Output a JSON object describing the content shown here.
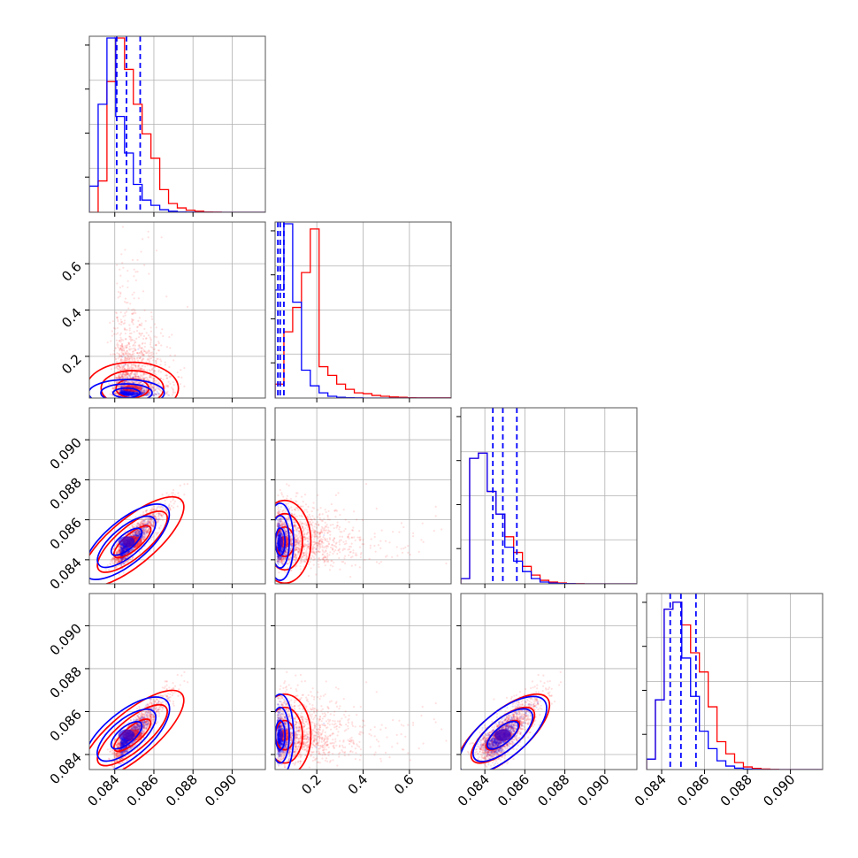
{
  "chart_data": {
    "type": "corner",
    "dims": [
      {
        "range": [
          0.0827,
          0.0917
        ],
        "ticks": [
          0.084,
          0.086,
          0.088,
          0.09
        ],
        "tick_labels": [
          "0.084",
          "0.086",
          "0.088",
          "0.090"
        ]
      },
      {
        "range": [
          0.02,
          0.78
        ],
        "ticks": [
          0.2,
          0.4,
          0.6
        ],
        "tick_labels": [
          "0.2",
          "0.4",
          "0.6"
        ]
      },
      {
        "range": [
          0.0828,
          0.0916
        ],
        "ticks": [
          0.084,
          0.086,
          0.088,
          0.09
        ],
        "tick_labels": [
          "0.084",
          "0.086",
          "0.088",
          "0.090"
        ]
      },
      {
        "range": [
          0.0833,
          0.0915
        ],
        "ticks": [
          0.084,
          0.086,
          0.088,
          0.09
        ],
        "tick_labels": [
          "0.084",
          "0.086",
          "0.088",
          "0.090"
        ]
      }
    ],
    "series": [
      {
        "color": "#ff0000",
        "histograms": [
          [
            0,
            0.18,
            0.75,
            1.0,
            0.82,
            0.62,
            0.45,
            0.31,
            0.13,
            0.05,
            0.025,
            0.012,
            0.006,
            0.002,
            0.001,
            0,
            0,
            0,
            0,
            0
          ],
          [
            0.08,
            0.38,
            0.52,
            0.72,
            0.97,
            0.18,
            0.13,
            0.08,
            0.05,
            0.03,
            0.025,
            0.015,
            0.01,
            0.006,
            0.004,
            0.002,
            0.001,
            0.001,
            0.001,
            0.001
          ],
          [
            0.03,
            0.72,
            0.75,
            0.53,
            0.4,
            0.27,
            0.18,
            0.1,
            0.05,
            0.02,
            0.01,
            0.005,
            0.002,
            0.001,
            0,
            0,
            0,
            0,
            0,
            0
          ],
          [
            0.06,
            0.4,
            0.92,
            0.96,
            0.83,
            0.67,
            0.56,
            0.36,
            0.16,
            0.09,
            0.04,
            0.015,
            0.007,
            0.003,
            0.001,
            0,
            0,
            0,
            0,
            0
          ]
        ],
        "quantiles": [
          [
            0.0842,
            0.0849,
            0.0857
          ],
          [
            0.045,
            0.062,
            0.11
          ],
          [
            0.0843,
            0.0849,
            0.0856
          ],
          [
            0.0844,
            0.0849,
            0.0856
          ]
        ]
      },
      {
        "color": "#0000ff",
        "histograms": [
          [
            0.15,
            0.62,
            1.0,
            0.55,
            0.34,
            0.16,
            0.07,
            0.04,
            0.015,
            0.006,
            0.002,
            0.001,
            0,
            0,
            0,
            0,
            0,
            0,
            0,
            0
          ],
          [
            0.62,
            1.0,
            0.55,
            0.16,
            0.07,
            0.03,
            0.01,
            0.004,
            0.002,
            0.001,
            0,
            0,
            0,
            0,
            0,
            0,
            0,
            0,
            0,
            0
          ],
          [
            0.03,
            0.72,
            0.75,
            0.53,
            0.4,
            0.21,
            0.13,
            0.07,
            0.03,
            0.01,
            0.004,
            0.002,
            0.001,
            0,
            0,
            0,
            0,
            0,
            0,
            0
          ],
          [
            0.06,
            0.4,
            0.92,
            0.96,
            0.64,
            0.42,
            0.22,
            0.12,
            0.05,
            0.02,
            0.008,
            0.003,
            0.001,
            0,
            0,
            0,
            0,
            0,
            0,
            0
          ]
        ],
        "quantiles": [
          [
            0.0841,
            0.0846,
            0.0853
          ],
          [
            0.032,
            0.042,
            0.058
          ],
          [
            0.0844,
            0.0849,
            0.0856
          ],
          [
            0.0844,
            0.0849,
            0.0856
          ]
        ]
      }
    ],
    "grid": true,
    "grid_color": "#b0b0b0",
    "frame_color": "#555555"
  }
}
